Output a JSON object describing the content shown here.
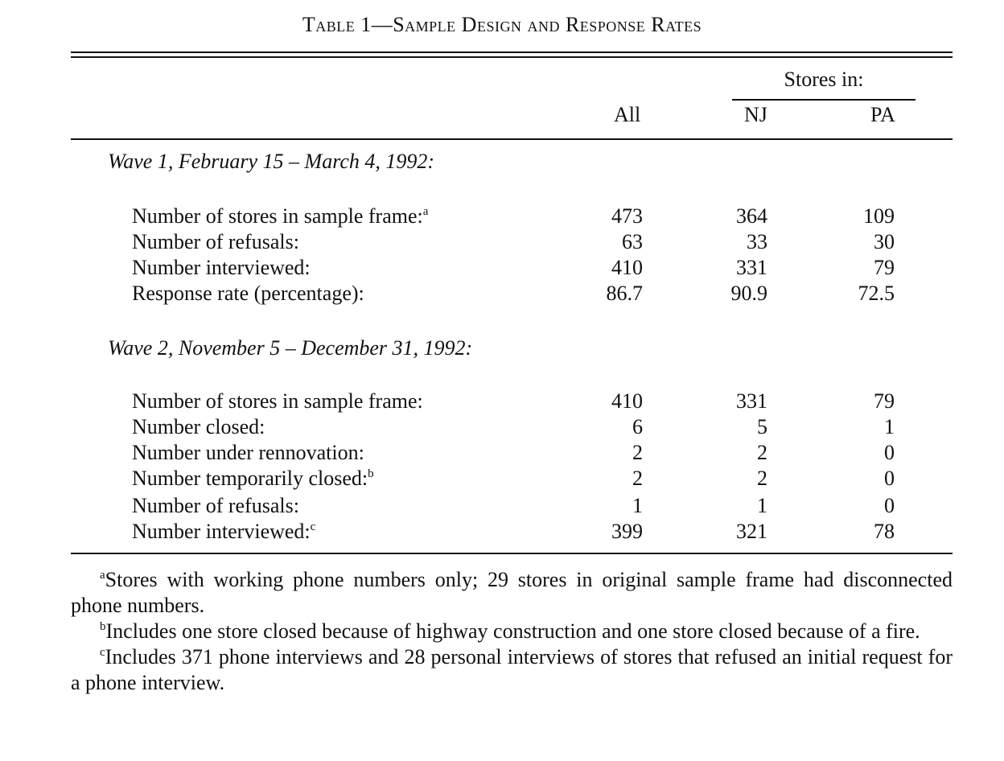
{
  "title": "Table 1—Sample Design and Response Rates",
  "header": {
    "stores_in": "Stores in:",
    "col_all": "All",
    "col_nj": "NJ",
    "col_pa": "PA"
  },
  "wave1": {
    "heading": "Wave 1, February 15 – March 4, 1992:",
    "rows": [
      {
        "label": "Number of stores in sample frame:",
        "note": "a",
        "all": "473",
        "nj": "364",
        "pa": "109"
      },
      {
        "label": "Number of refusals:",
        "note": "",
        "all": "63",
        "nj": "33",
        "pa": "30"
      },
      {
        "label": "Number interviewed:",
        "note": "",
        "all": "410",
        "nj": "331",
        "pa": "79"
      },
      {
        "label": "Response rate (percentage):",
        "note": "",
        "all": "86.7",
        "nj": "90.9",
        "pa": "72.5"
      }
    ]
  },
  "wave2": {
    "heading": "Wave 2, November 5 – December 31, 1992:",
    "rows": [
      {
        "label": "Number of stores in sample frame:",
        "note": "",
        "all": "410",
        "nj": "331",
        "pa": "79"
      },
      {
        "label": "Number closed:",
        "note": "",
        "all": "6",
        "nj": "5",
        "pa": "1"
      },
      {
        "label": "Number under rennovation:",
        "note": "",
        "all": "2",
        "nj": "2",
        "pa": "0"
      },
      {
        "label": "Number temporarily closed:",
        "note": "b",
        "all": "2",
        "nj": "2",
        "pa": "0"
      },
      {
        "label": "Number of refusals:",
        "note": "",
        "all": "1",
        "nj": "1",
        "pa": "0"
      },
      {
        "label": "Number interviewed:",
        "note": "c",
        "all": "399",
        "nj": "321",
        "pa": "78"
      }
    ]
  },
  "footnotes": [
    {
      "mark": "a",
      "text": "Stores with working phone numbers only; 29 stores in original sample frame had disconnected phone numbers."
    },
    {
      "mark": "b",
      "text": "Includes one store closed because of highway construction and one store closed because of a fire."
    },
    {
      "mark": "c",
      "text": "Includes 371 phone interviews and 28 personal interviews of stores that refused an initial request for a phone interview."
    }
  ]
}
